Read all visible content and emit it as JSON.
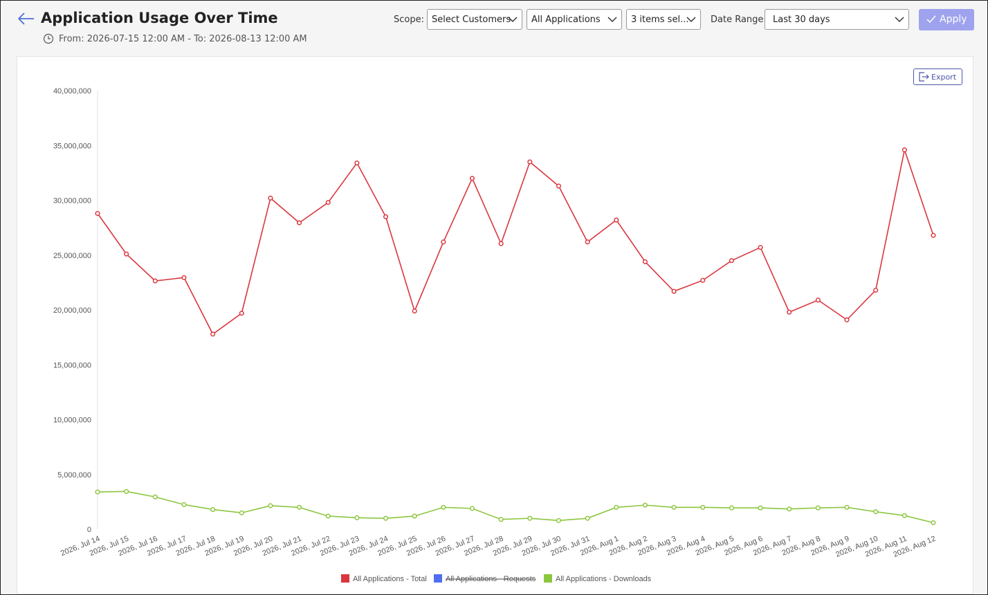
{
  "header": {
    "title": "Application Usage Over Time",
    "range": "From: 2026-07-15 12:00 AM - To: 2026-08-13 12:00 AM",
    "scope_label": "Scope:",
    "customers": "Select Customers",
    "applications": "All Applications",
    "items": "3 items sel...",
    "date_range_label": "Date Range:",
    "date_range": "Last 30 days",
    "apply": "Apply",
    "export": "Export"
  },
  "chart_data": {
    "type": "line",
    "categories": [
      "2026, Jul 14",
      "2026, Jul 15",
      "2026, Jul 16",
      "2026, Jul 17",
      "2026, Jul 18",
      "2026, Jul 19",
      "2026, Jul 20",
      "2026, Jul 21",
      "2026, Jul 22",
      "2026, Jul 23",
      "2026, Jul 24",
      "2026, Jul 25",
      "2026, Jul 26",
      "2026, Jul 27",
      "2026, Jul 28",
      "2026, Jul 29",
      "2026, Jul 30",
      "2026, Jul 31",
      "2026, Aug 1",
      "2026, Aug 2",
      "2026, Aug 3",
      "2026, Aug 4",
      "2026, Aug 5",
      "2026, Aug 6",
      "2026, Aug 7",
      "2026, Aug 8",
      "2026, Aug 9",
      "2026, Aug 10",
      "2026, Aug 11",
      "2026, Aug 12"
    ],
    "series": [
      {
        "name": "All Applications - Total",
        "color": "#d9363e",
        "values": [
          28800000,
          25100000,
          22650000,
          22950000,
          17800000,
          19700000,
          30200000,
          27950000,
          29800000,
          33400000,
          28500000,
          19900000,
          26200000,
          32000000,
          26050000,
          33500000,
          31300000,
          26200000,
          28200000,
          24400000,
          21700000,
          22700000,
          24500000,
          25700000,
          19800000,
          20900000,
          19100000,
          21800000,
          34600000,
          26800000
        ]
      },
      {
        "name": "All Applications - Requests",
        "color": "#4f6ef2",
        "hidden": true,
        "values": [
          null,
          null,
          null,
          null,
          null,
          null,
          null,
          null,
          null,
          null,
          null,
          null,
          null,
          null,
          null,
          null,
          null,
          null,
          null,
          null,
          null,
          null,
          null,
          null,
          null,
          null,
          null,
          null,
          null,
          null
        ]
      },
      {
        "name": "All Applications - Downloads",
        "color": "#8cc63f",
        "values": [
          3400000,
          3450000,
          2950000,
          2250000,
          1800000,
          1500000,
          2150000,
          2000000,
          1200000,
          1050000,
          1000000,
          1200000,
          2000000,
          1900000,
          900000,
          1000000,
          800000,
          1000000,
          2000000,
          2200000,
          2000000,
          2000000,
          1950000,
          1950000,
          1850000,
          1950000,
          2000000,
          1600000,
          1250000,
          600000
        ]
      }
    ],
    "ylim": [
      0,
      40000000
    ],
    "yticks": [
      0,
      {
        "value": 5000000,
        "label": "5,000,000"
      },
      {
        "value": 10000000,
        "label": "10,000,000"
      },
      {
        "value": 15000000,
        "label": "15,000,000"
      },
      {
        "value": 20000000,
        "label": "20,000,000"
      },
      {
        "value": 25000000,
        "label": "25,000,000"
      },
      {
        "value": 30000000,
        "label": "30,000,000"
      },
      {
        "value": 35000000,
        "label": "35,000,000"
      },
      {
        "value": 40000000,
        "label": "40,000,000"
      }
    ],
    "grid": false,
    "legend": "bottom"
  }
}
